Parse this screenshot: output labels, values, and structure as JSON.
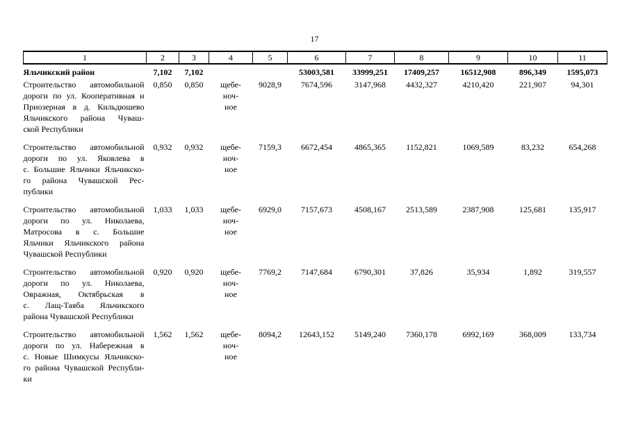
{
  "page": {
    "number": "17"
  },
  "table": {
    "header_cols": [
      "1",
      "2",
      "3",
      "4",
      "5",
      "6",
      "7",
      "8",
      "9",
      "10",
      "11"
    ],
    "summary": {
      "name": "Яльчикский район",
      "cells": [
        "7,102",
        "7,102",
        "",
        "",
        "53003,581",
        "33999,251",
        "17409,257",
        "16512,908",
        "896,349",
        "1595,073"
      ]
    },
    "rows": [
      {
        "description_lines": [
          "Строительство автомобильной",
          "дороги по ул. Кооперативная и",
          "Приозерная в д. Кильдюшево",
          "Яльчикского района Чуваш-",
          "ской Республики"
        ],
        "c2": "0,850",
        "c3": "0,850",
        "surface_lines": [
          "щебе-",
          "ноч-",
          "ное"
        ],
        "values": [
          "9028,9",
          "7674,596",
          "3147,968",
          "4432,327",
          "4210,420",
          "221,907",
          "94,301"
        ]
      },
      {
        "description_lines": [
          "Строительство автомобильной",
          "дороги по ул. Яковлева в",
          "с. Большие Яльчики Яльчикско-",
          "го района Чувашской Рес-",
          "публики"
        ],
        "c2": "0,932",
        "c3": "0,932",
        "surface_lines": [
          "щебе-",
          "ноч-",
          "ное"
        ],
        "values": [
          "7159,3",
          "6672,454",
          "4865,365",
          "1152,821",
          "1069,589",
          "83,232",
          "654,268"
        ]
      },
      {
        "description_lines": [
          "Строительство автомобильной",
          "дороги по ул. Николаева,",
          "Матросова в с. Большие",
          "Яльчики Яльчикского района",
          "Чувашской Республики"
        ],
        "c2": "1,033",
        "c3": "1,033",
        "surface_lines": [
          "щебе-",
          "ноч-",
          "ное"
        ],
        "values": [
          "6929,0",
          "7157,673",
          "4508,167",
          "2513,589",
          "2387,908",
          "125,681",
          "135,917"
        ]
      },
      {
        "description_lines": [
          "Строительство автомобильной",
          "дороги по ул. Николаева,",
          "Овражная, Октябрьская в",
          "с. Лащ-Таяба Яльчикского",
          "района Чувашской Республики"
        ],
        "c2": "0,920",
        "c3": "0,920",
        "surface_lines": [
          "щебе-",
          "ноч-",
          "ное"
        ],
        "values": [
          "7769,2",
          "7147,684",
          "6790,301",
          "37,826",
          "35,934",
          "1,892",
          "319,557"
        ]
      },
      {
        "description_lines": [
          "Строительство автомобильной",
          "дороги по ул. Набережная в",
          "с. Новые Шимкусы Яльчикско-",
          "го района Чувашской Республи-",
          "ки"
        ],
        "c2": "1,562",
        "c3": "1,562",
        "surface_lines": [
          "щебе-",
          "ноч-",
          "ное"
        ],
        "values": [
          "8094,2",
          "12643,152",
          "5149,240",
          "7360,178",
          "6992,169",
          "368,009",
          "133,734"
        ]
      }
    ]
  }
}
